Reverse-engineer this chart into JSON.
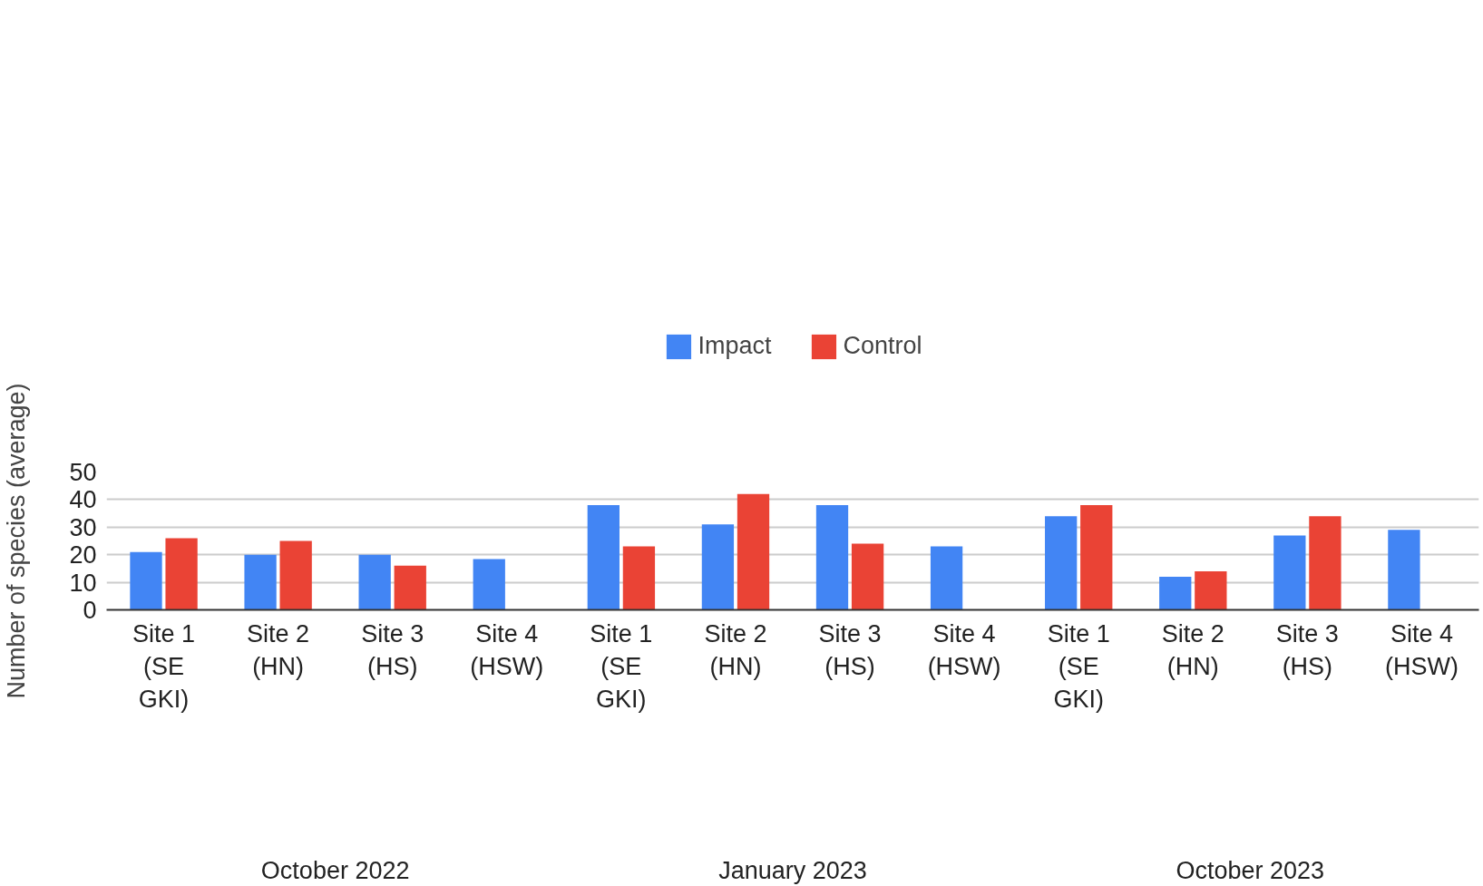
{
  "chart_data": {
    "type": "bar",
    "ylabel": "Number of species (average)",
    "categories": [
      "Site 1 (SE GKI)",
      "Site 2 (HN)",
      "Site 3 (HS)",
      "Site 4 (HSW)",
      "Site 1 (SE GKI)",
      "Site 2 (HN)",
      "Site 3 (HS)",
      "Site 4 (HSW)",
      "Site 1 (SE GKI)",
      "Site 2 (HN)",
      "Site 3 (HS)",
      "Site 4 (HSW)"
    ],
    "series": [
      {
        "name": "Impact",
        "color": "#4285f4",
        "values": [
          21,
          20,
          20,
          18.4,
          38,
          31,
          38,
          23,
          34,
          12,
          27,
          29
        ]
      },
      {
        "name": "Control",
        "color": "#ea4335",
        "values": [
          26,
          25,
          16,
          null,
          23,
          42,
          24,
          null,
          38,
          14,
          34,
          null
        ]
      }
    ],
    "annotations": [
      "October 2022",
      "January 2023",
      "October 2023"
    ],
    "ylim": [
      0,
      50
    ],
    "yticks": [
      0,
      10,
      20,
      30,
      40,
      50
    ],
    "grid": "y",
    "legend": "top"
  }
}
